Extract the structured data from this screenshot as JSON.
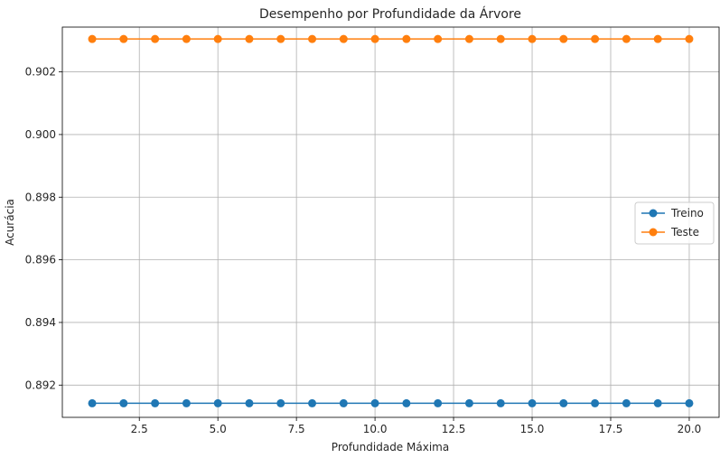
{
  "chart_data": {
    "type": "line",
    "title": "Desempenho por Profundidade da Árvore",
    "xlabel": "Profundidade Máxima",
    "ylabel": "Acurácia",
    "xlim": [
      0.05,
      20.95
    ],
    "ylim": [
      0.89097,
      0.90343
    ],
    "xticks": [
      2.5,
      5.0,
      7.5,
      10.0,
      12.5,
      15.0,
      17.5,
      20.0
    ],
    "xtick_labels": [
      "2.5",
      "5.0",
      "7.5",
      "10.0",
      "12.5",
      "15.0",
      "17.5",
      "20.0"
    ],
    "yticks": [
      0.892,
      0.894,
      0.896,
      0.898,
      0.9,
      0.902
    ],
    "ytick_labels": [
      "0.892",
      "0.894",
      "0.896",
      "0.898",
      "0.900",
      "0.902"
    ],
    "grid": true,
    "legend_position": "center-right",
    "x": [
      1,
      2,
      3,
      4,
      5,
      6,
      7,
      8,
      9,
      10,
      11,
      12,
      13,
      14,
      15,
      16,
      17,
      18,
      19,
      20
    ],
    "series": [
      {
        "name": "Treino",
        "color": "#1f77b4",
        "marker": "circle",
        "values": [
          0.89142,
          0.89142,
          0.89142,
          0.89142,
          0.89142,
          0.89142,
          0.89142,
          0.89142,
          0.89142,
          0.89142,
          0.89142,
          0.89142,
          0.89142,
          0.89142,
          0.89142,
          0.89142,
          0.89142,
          0.89142,
          0.89142,
          0.89142
        ]
      },
      {
        "name": "Teste",
        "color": "#ff7f0e",
        "marker": "circle",
        "values": [
          0.90305,
          0.90305,
          0.90305,
          0.90305,
          0.90305,
          0.90305,
          0.90305,
          0.90305,
          0.90305,
          0.90305,
          0.90305,
          0.90305,
          0.90305,
          0.90305,
          0.90305,
          0.90305,
          0.90305,
          0.90305,
          0.90305,
          0.90305
        ]
      }
    ]
  }
}
